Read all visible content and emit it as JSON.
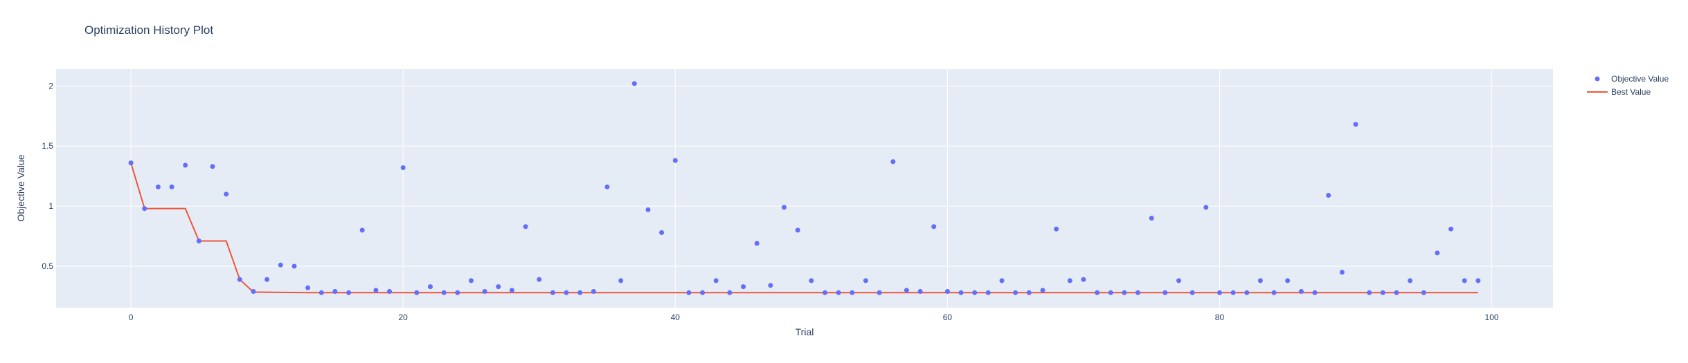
{
  "chart_data": {
    "type": "scatter",
    "title": "Optimization History Plot",
    "xlabel": "Trial",
    "ylabel": "Objective Value",
    "xlim": [
      -5.5,
      104.5
    ],
    "ylim": [
      0.155,
      2.14
    ],
    "xticks": [
      0,
      20,
      40,
      60,
      80,
      100
    ],
    "yticks": [
      0.5,
      1,
      1.5,
      2
    ],
    "ytick_labels": [
      "0.5",
      "1",
      "1.5",
      "2"
    ],
    "grid": true,
    "legend_position": "top-right",
    "colors": {
      "objective": "#636efa",
      "best": "#ef553b",
      "plot_bg": "#e5ecf6",
      "grid": "#ffffff",
      "text": "#2a3f5f"
    },
    "series": [
      {
        "name": "Objective Value",
        "mode": "markers",
        "x": [
          0,
          1,
          2,
          3,
          4,
          5,
          6,
          7,
          8,
          9,
          10,
          11,
          12,
          13,
          14,
          15,
          16,
          17,
          18,
          19,
          20,
          21,
          22,
          23,
          24,
          25,
          26,
          27,
          28,
          29,
          30,
          31,
          32,
          33,
          34,
          35,
          36,
          37,
          38,
          39,
          40,
          41,
          42,
          43,
          44,
          45,
          46,
          47,
          48,
          49,
          50,
          51,
          52,
          53,
          54,
          55,
          56,
          57,
          58,
          59,
          60,
          61,
          62,
          63,
          64,
          65,
          66,
          67,
          68,
          69,
          70,
          71,
          72,
          73,
          74,
          75,
          76,
          77,
          78,
          79,
          80,
          81,
          82,
          83,
          84,
          85,
          86,
          87,
          88,
          89,
          90,
          91,
          92,
          93,
          94,
          95,
          96,
          97,
          98,
          99
        ],
        "y": [
          1.36,
          0.98,
          1.16,
          1.16,
          1.34,
          0.71,
          1.33,
          1.1,
          0.39,
          0.29,
          0.39,
          0.51,
          0.5,
          0.32,
          0.28,
          0.29,
          0.28,
          0.8,
          0.3,
          0.29,
          1.32,
          0.28,
          0.33,
          0.28,
          0.28,
          0.38,
          0.29,
          0.33,
          0.3,
          0.83,
          0.39,
          0.28,
          0.28,
          0.28,
          0.29,
          1.16,
          0.38,
          2.02,
          0.97,
          0.78,
          1.38,
          0.28,
          0.28,
          0.38,
          0.28,
          0.33,
          0.69,
          0.34,
          0.99,
          0.8,
          0.38,
          0.28,
          0.28,
          0.28,
          0.38,
          0.28,
          1.37,
          0.3,
          0.29,
          0.83,
          0.29,
          0.28,
          0.28,
          0.28,
          0.38,
          0.28,
          0.28,
          0.3,
          0.81,
          0.38,
          0.39,
          0.28,
          0.28,
          0.28,
          0.28,
          0.9,
          0.28,
          0.38,
          0.28,
          0.99,
          0.28,
          0.28,
          0.28,
          0.38,
          0.28,
          0.38,
          0.29,
          0.28,
          1.09,
          0.45,
          1.68,
          0.28,
          0.28,
          0.28,
          0.38,
          0.28,
          0.61,
          0.81,
          0.38,
          0.38
        ]
      },
      {
        "name": "Best Value",
        "mode": "lines",
        "x": [
          0,
          1,
          4,
          5,
          7,
          8,
          9,
          13,
          99
        ],
        "y": [
          1.36,
          0.98,
          0.98,
          0.71,
          0.71,
          0.39,
          0.285,
          0.28,
          0.28
        ]
      }
    ]
  }
}
